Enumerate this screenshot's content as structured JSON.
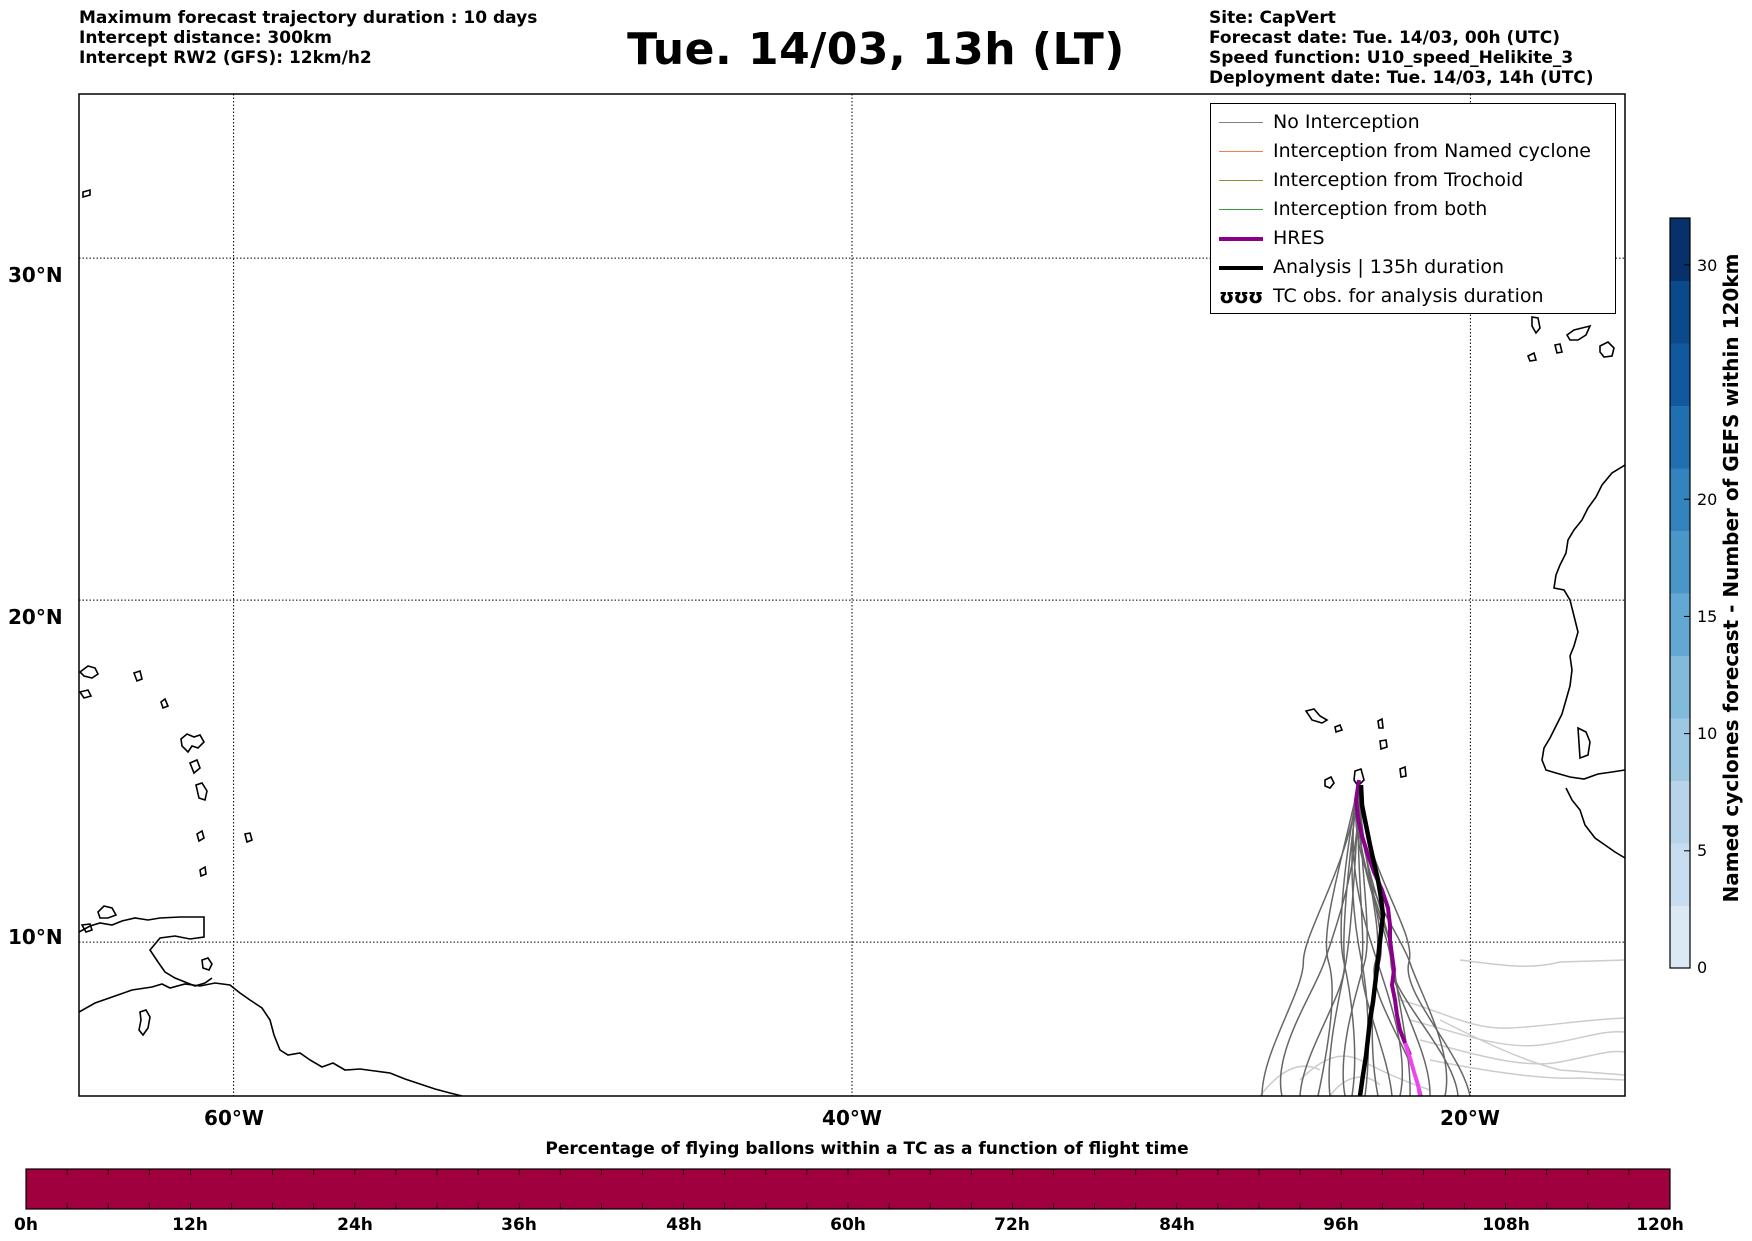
{
  "header_left": [
    "Maximum forecast trajectory duration : 10 days",
    "Intercept distance: 300km",
    "Intercept RW2 (GFS):  12km/h2"
  ],
  "title": "Tue. 14/03, 13h (LT)",
  "header_right": [
    "Site: CapVert",
    "Forecast date: Tue. 14/03, 00h (UTC)",
    "Speed function: U10_speed_Helikite_3",
    "Deployment date: Tue. 14/03, 14h (UTC)"
  ],
  "legend": [
    {
      "label": "No Interception",
      "color": "#808080",
      "width": 1.5
    },
    {
      "label": "Interception from Named cyclone",
      "color": "#f08050",
      "width": 1.5
    },
    {
      "label": "Interception from Trochoid",
      "color": "#9a8a3a",
      "width": 1.5
    },
    {
      "label": "Interception from both",
      "color": "#3a9a3a",
      "width": 1.5
    },
    {
      "label": "HRES",
      "color": "#8b008b",
      "width": 4
    },
    {
      "label": "Analysis | 135h duration",
      "color": "#000000",
      "width": 4
    },
    {
      "label": "TC obs. for analysis duration",
      "color": "#000000",
      "symbol": "ʊʊʊ"
    }
  ],
  "map": {
    "lat_ticks": [
      "30°N",
      "20°N",
      "10°N"
    ],
    "lon_ticks": [
      "60°W",
      "40°W",
      "20°W"
    ],
    "lat_values": [
      30,
      20,
      10
    ],
    "lon_values": [
      -60,
      -40,
      -20
    ],
    "lon_range": [
      -65,
      -15
    ],
    "lat_range": [
      5.5,
      34.8
    ]
  },
  "colorbar": {
    "title": "Named cyclones forecast - Number of GEFS within 120km",
    "ticks": [
      "0",
      "5",
      "10",
      "15",
      "20",
      "30"
    ],
    "tick_values": [
      0,
      5,
      10,
      15,
      20,
      30
    ],
    "range": [
      0,
      32
    ],
    "colors": [
      "#dbe9f6",
      "#c9ddf0",
      "#b7d4ea",
      "#9ec8e2",
      "#82badb",
      "#63a8d3",
      "#4a96c9",
      "#3383be",
      "#1f6fb1",
      "#11589f",
      "#0a4a8c",
      "#08306b"
    ]
  },
  "time_bar": {
    "title": "Percentage of flying ballons within a TC as a function of flight time",
    "ticks": [
      "0h",
      "12h",
      "24h",
      "36h",
      "48h",
      "60h",
      "72h",
      "84h",
      "96h",
      "108h",
      "120h"
    ],
    "fill_color": "#a0003e"
  }
}
